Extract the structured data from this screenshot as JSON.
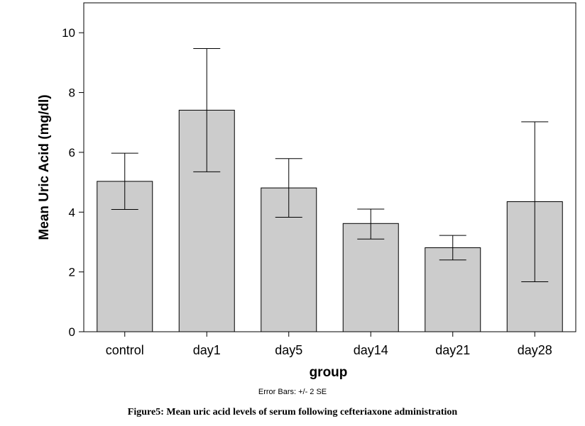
{
  "chart_data": {
    "type": "bar",
    "categories": [
      "control",
      "day1",
      "day5",
      "day14",
      "day21",
      "day28"
    ],
    "values": [
      5.03,
      7.41,
      4.81,
      3.62,
      2.81,
      4.35
    ],
    "error_low": [
      4.09,
      5.35,
      3.83,
      3.1,
      2.4,
      1.67
    ],
    "error_high": [
      5.97,
      9.47,
      5.79,
      4.1,
      3.22,
      7.02
    ],
    "xlabel": "group",
    "ylabel": "Mean Uric Acid (mg/dl)",
    "ylim": [
      0,
      11
    ],
    "yticks": [
      0,
      2,
      4,
      6,
      8,
      10
    ],
    "grid": false,
    "bar_color": "#cccccc",
    "note": "Error Bars: +/- 2 SE"
  },
  "caption": "Figure5: Mean uric acid levels of serum following cefteriaxone administration"
}
